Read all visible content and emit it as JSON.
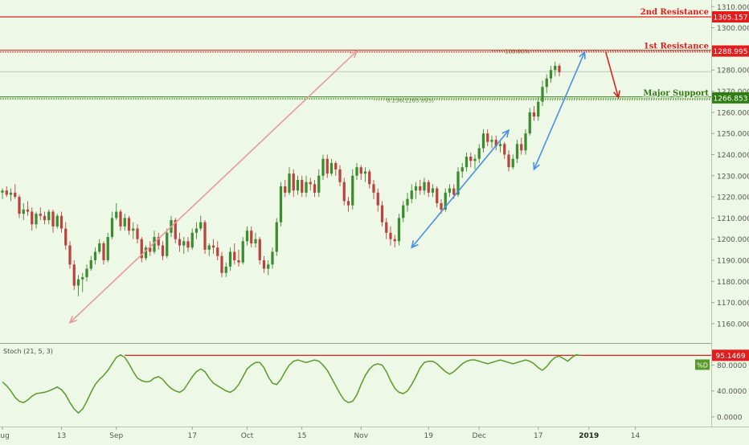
{
  "chart_data": {
    "type": "candlestick",
    "price_axis": {
      "ticks": [
        1160,
        1170,
        1180,
        1190,
        1200,
        1210,
        1220,
        1230,
        1240,
        1250,
        1260,
        1270,
        1280,
        1290,
        1300,
        1310
      ],
      "tick_labels": [
        "1160.000",
        "1170.000",
        "1180.000",
        "1190.000",
        "1200.000",
        "1210.000",
        "1220.000",
        "1230.000",
        "1240.000",
        "1250.000",
        "1260.000",
        "1270.000",
        "1280.000",
        "1290.000",
        "1300.000",
        "1310.000"
      ],
      "range": [
        1152,
        1312
      ]
    },
    "time_axis": {
      "labels": [
        "Aug",
        "13",
        "Sep",
        "17",
        "Oct",
        "15",
        "Nov",
        "19",
        "Dec",
        "17",
        "2019",
        "14"
      ],
      "label_index": [
        0,
        14,
        27,
        45,
        58,
        71,
        85,
        101,
        113,
        127,
        139,
        150
      ],
      "bold": [
        "2019"
      ],
      "index_range": [
        0,
        168
      ]
    },
    "levels": [
      {
        "label": "2nd Resistance",
        "value": 1305.157,
        "value_text": "1305.157",
        "color": "#e11d1d",
        "style": "solid"
      },
      {
        "label": "1st Resistance",
        "value": 1288.995,
        "value_text": "1288.995",
        "color": "#e11d1d",
        "style": "double"
      },
      {
        "label": "Major Support",
        "value": 1266.853,
        "value_text": "1266.853",
        "color": "#2f7d12",
        "style": "double"
      }
    ],
    "last_price": {
      "value": 1279.2,
      "color": "#b7c9bd"
    },
    "fib": [
      {
        "label": "100.00%",
        "value": 1288.995,
        "from_index": 116
      },
      {
        "label": "0.236(1265.895)",
        "value": 1265.895,
        "from_index": 88
      }
    ],
    "arrows": [
      {
        "from": [
          84,
          1288.995
        ],
        "to": [
          16,
          1160.5
        ],
        "color": "#e89a9a",
        "double": true
      },
      {
        "from": [
          97,
          1196
        ],
        "to": [
          120,
          1251.5
        ],
        "color": "#4a90e2",
        "double": true
      },
      {
        "from": [
          126,
          1233
        ],
        "to": [
          138,
          1288.5
        ],
        "color": "#4a90e2",
        "double": true
      },
      {
        "from": [
          143,
          1288.5
        ],
        "to": [
          146,
          1267
        ],
        "color": "#d9231f",
        "double": false
      }
    ],
    "candles": [
      [
        1222,
        1224,
        1219,
        1223
      ],
      [
        1223,
        1225,
        1220,
        1221
      ],
      [
        1221,
        1224,
        1218,
        1222
      ],
      [
        1222,
        1226,
        1219,
        1220
      ],
      [
        1220,
        1221,
        1210,
        1212
      ],
      [
        1212,
        1217,
        1209,
        1214
      ],
      [
        1214,
        1218,
        1211,
        1213
      ],
      [
        1213,
        1215,
        1204,
        1207
      ],
      [
        1207,
        1213,
        1205,
        1212
      ],
      [
        1212,
        1215,
        1209,
        1211
      ],
      [
        1211,
        1213,
        1207,
        1209
      ],
      [
        1209,
        1214,
        1207,
        1213
      ],
      [
        1213,
        1214,
        1203,
        1206
      ],
      [
        1206,
        1212,
        1205,
        1211
      ],
      [
        1211,
        1213,
        1203,
        1205
      ],
      [
        1205,
        1208,
        1195,
        1197
      ],
      [
        1197,
        1199,
        1186,
        1188
      ],
      [
        1188,
        1190,
        1176,
        1178
      ],
      [
        1178,
        1183,
        1173,
        1181
      ],
      [
        1181,
        1184,
        1175,
        1182
      ],
      [
        1182,
        1188,
        1180,
        1186
      ],
      [
        1186,
        1192,
        1185,
        1190
      ],
      [
        1190,
        1196,
        1188,
        1194
      ],
      [
        1194,
        1200,
        1193,
        1198
      ],
      [
        1198,
        1199,
        1188,
        1190
      ],
      [
        1190,
        1203,
        1189,
        1201
      ],
      [
        1201,
        1213,
        1200,
        1210
      ],
      [
        1210,
        1217,
        1209,
        1213
      ],
      [
        1213,
        1214,
        1204,
        1206
      ],
      [
        1206,
        1212,
        1204,
        1210
      ],
      [
        1210,
        1211,
        1202,
        1204
      ],
      [
        1204,
        1208,
        1200,
        1205
      ],
      [
        1205,
        1207,
        1198,
        1200
      ],
      [
        1200,
        1201,
        1189,
        1191
      ],
      [
        1191,
        1197,
        1190,
        1196
      ],
      [
        1196,
        1199,
        1192,
        1194
      ],
      [
        1194,
        1204,
        1193,
        1201
      ],
      [
        1201,
        1203,
        1195,
        1197
      ],
      [
        1197,
        1199,
        1190,
        1192
      ],
      [
        1192,
        1205,
        1191,
        1203
      ],
      [
        1203,
        1211,
        1201,
        1209
      ],
      [
        1209,
        1210,
        1198,
        1200
      ],
      [
        1200,
        1203,
        1194,
        1197
      ],
      [
        1197,
        1201,
        1193,
        1199
      ],
      [
        1199,
        1201,
        1194,
        1196
      ],
      [
        1196,
        1205,
        1195,
        1203
      ],
      [
        1203,
        1208,
        1200,
        1205
      ],
      [
        1205,
        1211,
        1204,
        1208
      ],
      [
        1208,
        1209,
        1193,
        1195
      ],
      [
        1195,
        1198,
        1192,
        1197
      ],
      [
        1197,
        1200,
        1193,
        1196
      ],
      [
        1196,
        1199,
        1190,
        1192
      ],
      [
        1192,
        1194,
        1182,
        1184
      ],
      [
        1184,
        1189,
        1182,
        1187
      ],
      [
        1187,
        1196,
        1185,
        1194
      ],
      [
        1194,
        1198,
        1188,
        1190
      ],
      [
        1190,
        1195,
        1187,
        1189
      ],
      [
        1189,
        1201,
        1188,
        1199
      ],
      [
        1199,
        1206,
        1197,
        1204
      ],
      [
        1204,
        1206,
        1196,
        1198
      ],
      [
        1198,
        1203,
        1196,
        1200
      ],
      [
        1200,
        1201,
        1188,
        1190
      ],
      [
        1190,
        1192,
        1184,
        1186
      ],
      [
        1186,
        1190,
        1183,
        1188
      ],
      [
        1188,
        1196,
        1186,
        1194
      ],
      [
        1194,
        1210,
        1192,
        1208
      ],
      [
        1208,
        1227,
        1206,
        1225
      ],
      [
        1225,
        1228,
        1220,
        1222
      ],
      [
        1222,
        1234,
        1221,
        1231
      ],
      [
        1231,
        1233,
        1220,
        1223
      ],
      [
        1223,
        1230,
        1221,
        1228
      ],
      [
        1228,
        1230,
        1220,
        1222
      ],
      [
        1222,
        1230,
        1220,
        1227
      ],
      [
        1227,
        1229,
        1223,
        1226
      ],
      [
        1226,
        1228,
        1220,
        1222
      ],
      [
        1222,
        1233,
        1220,
        1230
      ],
      [
        1230,
        1240,
        1228,
        1238
      ],
      [
        1238,
        1240,
        1229,
        1231
      ],
      [
        1231,
        1238,
        1230,
        1236
      ],
      [
        1236,
        1237,
        1230,
        1233
      ],
      [
        1233,
        1235,
        1225,
        1227
      ],
      [
        1227,
        1229,
        1216,
        1218
      ],
      [
        1218,
        1220,
        1213,
        1216
      ],
      [
        1216,
        1233,
        1214,
        1230
      ],
      [
        1230,
        1236,
        1228,
        1234
      ],
      [
        1234,
        1235,
        1228,
        1231
      ],
      [
        1231,
        1234,
        1227,
        1232
      ],
      [
        1232,
        1233,
        1224,
        1226
      ],
      [
        1226,
        1228,
        1219,
        1222
      ],
      [
        1222,
        1224,
        1213,
        1216
      ],
      [
        1216,
        1218,
        1206,
        1208
      ],
      [
        1208,
        1210,
        1200,
        1203
      ],
      [
        1203,
        1206,
        1197,
        1200
      ],
      [
        1200,
        1202,
        1196,
        1199
      ],
      [
        1199,
        1212,
        1197,
        1210
      ],
      [
        1210,
        1218,
        1208,
        1216
      ],
      [
        1216,
        1222,
        1213,
        1219
      ],
      [
        1219,
        1226,
        1217,
        1223
      ],
      [
        1223,
        1227,
        1219,
        1225
      ],
      [
        1225,
        1228,
        1221,
        1223
      ],
      [
        1223,
        1229,
        1221,
        1227
      ],
      [
        1227,
        1228,
        1220,
        1222
      ],
      [
        1222,
        1226,
        1220,
        1224
      ],
      [
        1224,
        1225,
        1215,
        1217
      ],
      [
        1217,
        1219,
        1212,
        1214
      ],
      [
        1214,
        1224,
        1213,
        1222
      ],
      [
        1222,
        1226,
        1220,
        1224
      ],
      [
        1224,
        1226,
        1219,
        1221
      ],
      [
        1221,
        1234,
        1220,
        1232
      ],
      [
        1232,
        1236,
        1229,
        1234
      ],
      [
        1234,
        1241,
        1232,
        1239
      ],
      [
        1239,
        1241,
        1234,
        1237
      ],
      [
        1237,
        1240,
        1233,
        1238
      ],
      [
        1238,
        1245,
        1236,
        1243
      ],
      [
        1243,
        1252,
        1241,
        1250
      ],
      [
        1250,
        1252,
        1244,
        1246
      ],
      [
        1246,
        1249,
        1243,
        1247
      ],
      [
        1247,
        1249,
        1242,
        1244
      ],
      [
        1244,
        1247,
        1241,
        1245
      ],
      [
        1245,
        1246,
        1238,
        1240
      ],
      [
        1240,
        1242,
        1232,
        1234
      ],
      [
        1234,
        1240,
        1233,
        1238
      ],
      [
        1238,
        1247,
        1236,
        1245
      ],
      [
        1245,
        1248,
        1240,
        1242
      ],
      [
        1242,
        1252,
        1240,
        1250
      ],
      [
        1250,
        1262,
        1249,
        1260
      ],
      [
        1260,
        1263,
        1256,
        1258
      ],
      [
        1258,
        1267,
        1256,
        1265
      ],
      [
        1265,
        1275,
        1263,
        1272
      ],
      [
        1272,
        1278,
        1269,
        1276
      ],
      [
        1276,
        1282,
        1274,
        1280
      ],
      [
        1280,
        1284,
        1277,
        1282
      ],
      [
        1282,
        1283,
        1277,
        1279
      ]
    ],
    "candle_start_index": 0,
    "stochastic": {
      "label": "Stoch (21, 5, 3)",
      "range": [
        -10,
        108
      ],
      "ticks": [
        0,
        40,
        80
      ],
      "tick_labels": [
        "0.0000",
        "40.0000",
        "80.0000"
      ],
      "level": {
        "value": 95.1469,
        "value_text": "95.1469",
        "color": "#e11d1d"
      },
      "d_badge": "%D",
      "line_color": "#5a9a2a",
      "values": [
        54,
        48,
        40,
        30,
        24,
        22,
        26,
        32,
        36,
        37,
        38,
        40,
        43,
        46,
        42,
        34,
        22,
        12,
        6,
        12,
        24,
        38,
        50,
        58,
        64,
        72,
        82,
        92,
        96,
        92,
        82,
        70,
        60,
        56,
        54,
        55,
        60,
        62,
        58,
        50,
        44,
        40,
        38,
        42,
        52,
        62,
        70,
        74,
        70,
        60,
        52,
        48,
        44,
        40,
        38,
        42,
        50,
        62,
        74,
        80,
        84,
        84,
        76,
        62,
        52,
        50,
        58,
        70,
        80,
        86,
        88,
        86,
        84,
        86,
        88,
        86,
        80,
        72,
        60,
        48,
        36,
        26,
        22,
        24,
        34,
        50,
        64,
        74,
        80,
        82,
        80,
        70,
        56,
        44,
        38,
        36,
        40,
        50,
        62,
        76,
        84,
        86,
        86,
        82,
        76,
        70,
        66,
        70,
        76,
        82,
        86,
        88,
        88,
        86,
        84,
        82,
        84,
        86,
        88,
        86,
        84,
        82,
        84,
        86,
        88,
        86,
        82,
        76,
        72,
        78,
        86,
        92,
        94,
        90,
        86,
        92,
        96,
        95
      ]
    }
  }
}
